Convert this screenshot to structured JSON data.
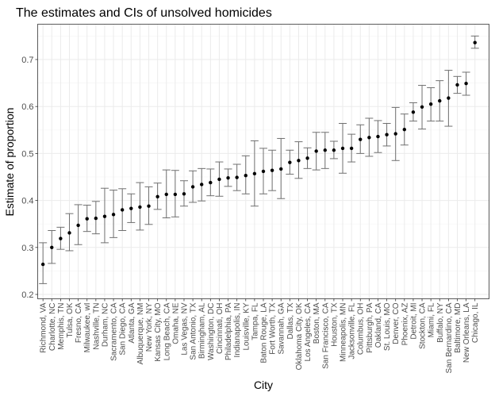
{
  "chart_data": {
    "type": "scatter",
    "title": "The estimates and CIs of unsolved homicides",
    "xlabel": "City",
    "ylabel": "Estimate of proportion",
    "ylim": [
      0.2,
      0.75
    ],
    "yticks": [
      "0.2",
      "0.3",
      "0.4",
      "0.5",
      "0.6",
      "0.7"
    ],
    "ytick_values": [
      0.2,
      0.3,
      0.4,
      0.5,
      0.6,
      0.7
    ],
    "grid": true,
    "error_bars": true,
    "categories": [
      "Richmond, VA",
      "Charlotte, NC",
      "Memphis, TN",
      "Tulsa, OK",
      "Fresno, CA",
      "Milwaukee, wI",
      "Nashville, TN",
      "Durham, NC",
      "Sacramento, CA",
      "San Diego, CA",
      "Atlanta, GA",
      "Albuquerque, NM",
      "New York, NY",
      "Kansas City, MO",
      "Long Beach, CA",
      "Omaha, NE",
      "Las Vegas, NV",
      "San Antonio, TX",
      "Birmingham, AL",
      "Washington, DC",
      "Cincinnati, OH",
      "Philadelphia, PA",
      "Indianapolis, IN",
      "Louisville, KY",
      "Tampa, FL",
      "Baton Rouge, LA",
      "Fort Worth, TX",
      "Savannah, GA",
      "Dallas, TX",
      "Oklahoma City, OK",
      "Los Angeles, CA",
      "Boston, MA",
      "San Francisco, CA",
      "Houston, TX",
      "Minneapolis, MN",
      "Jacksonville, FL",
      "Columbus, OH",
      "Pittsburgh, PA",
      "Oakland, CA",
      "St. Louis, MO",
      "Denver, CO",
      "Phoenix, AZ",
      "Detroit, MI",
      "Stockton, CA",
      "Miami, FL",
      "Buffalo, NY",
      "San Bernardino, CA",
      "Baltimore, MD",
      "New Orleans, LA",
      "Chicago, IL"
    ],
    "estimate": [
      0.264,
      0.3,
      0.319,
      0.331,
      0.347,
      0.361,
      0.362,
      0.366,
      0.37,
      0.38,
      0.383,
      0.386,
      0.388,
      0.408,
      0.413,
      0.413,
      0.414,
      0.429,
      0.434,
      0.438,
      0.445,
      0.448,
      0.449,
      0.453,
      0.457,
      0.462,
      0.464,
      0.467,
      0.481,
      0.485,
      0.49,
      0.505,
      0.507,
      0.507,
      0.511,
      0.511,
      0.53,
      0.534,
      0.536,
      0.54,
      0.542,
      0.551,
      0.588,
      0.599,
      0.605,
      0.612,
      0.618,
      0.646,
      0.649,
      0.736
    ],
    "ci_low": [
      0.223,
      0.266,
      0.296,
      0.293,
      0.306,
      0.334,
      0.329,
      0.31,
      0.321,
      0.336,
      0.353,
      0.337,
      0.349,
      0.381,
      0.363,
      0.365,
      0.388,
      0.396,
      0.399,
      0.41,
      0.409,
      0.43,
      0.421,
      0.414,
      0.388,
      0.414,
      0.421,
      0.404,
      0.456,
      0.447,
      0.468,
      0.465,
      0.468,
      0.489,
      0.458,
      0.482,
      0.5,
      0.494,
      0.502,
      0.516,
      0.485,
      0.518,
      0.569,
      0.552,
      0.569,
      0.569,
      0.558,
      0.628,
      0.624,
      0.724
    ],
    "ci_high": [
      0.31,
      0.336,
      0.343,
      0.372,
      0.391,
      0.39,
      0.398,
      0.426,
      0.422,
      0.425,
      0.414,
      0.438,
      0.429,
      0.437,
      0.465,
      0.464,
      0.442,
      0.463,
      0.468,
      0.467,
      0.482,
      0.467,
      0.477,
      0.495,
      0.527,
      0.511,
      0.507,
      0.532,
      0.507,
      0.525,
      0.512,
      0.545,
      0.545,
      0.526,
      0.564,
      0.541,
      0.561,
      0.575,
      0.57,
      0.564,
      0.598,
      0.584,
      0.608,
      0.645,
      0.64,
      0.655,
      0.677,
      0.664,
      0.673,
      0.75
    ]
  }
}
